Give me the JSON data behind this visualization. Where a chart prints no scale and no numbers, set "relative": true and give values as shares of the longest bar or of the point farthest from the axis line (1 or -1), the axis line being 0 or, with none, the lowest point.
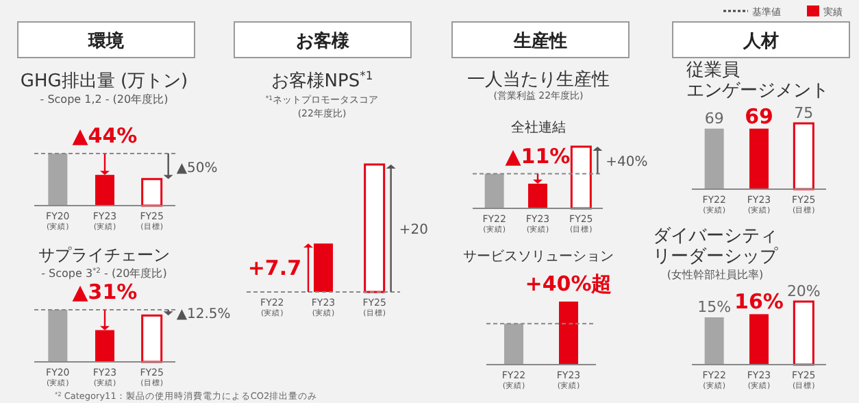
{
  "chart_data": [
    {
      "type": "other",
      "annotations": [
        "環境",
        "お客様",
        "生産性",
        "人材",
        "基準値",
        "実績",
        "一人当たり生産性",
        "(営業利益 22年度比)",
        "$^{*2}$ Category11：製品の使用時消費電力によるCO2排出量のみ"
      ]
    },
    {
      "type": "bar",
      "title": "GHG排出量 (万トン)",
      "subtitle": "- Scope 1,2 - (20年度比)",
      "categories": [
        "FY20(実績)",
        "FY23(実績)",
        "FY25(目標)"
      ],
      "values": [
        1,
        0.59,
        0.51
      ],
      "colors": [
        "#a6a6a6",
        "#e60012",
        "#ffffff"
      ],
      "relative": true,
      "ref_lines": [
        {
          "axis": "y",
          "value": 1,
          "line_style": "dashed"
        }
      ],
      "annotations": [
        "▲44%",
        "▲50%"
      ]
    },
    {
      "type": "bar",
      "title": "サプライチェーン",
      "subtitle": "- Scope 3$^{*2}$ - (20年度比)",
      "categories": [
        "FY20(実績)",
        "FY23(実績)",
        "FY25(目標)"
      ],
      "values": [
        1,
        0.61,
        0.89
      ],
      "colors": [
        "#a6a6a6",
        "#e60012",
        "#ffffff"
      ],
      "relative": true,
      "ref_lines": [
        {
          "axis": "y",
          "value": 1,
          "line_style": "dashed"
        }
      ],
      "annotations": [
        "▲31%",
        "▲12.5%"
      ]
    },
    {
      "type": "bar",
      "title": "お客様NPS$^{*1}$",
      "subtitle": "$^{*1}$ネットプロモータスコア\n(22年度比)",
      "categories": [
        "FY22(実績)",
        "FY23(実績)",
        "FY25(目標)"
      ],
      "values": [
        0,
        0.38,
        1
      ],
      "colors": [
        "#a6a6a6",
        "#e60012",
        "#ffffff"
      ],
      "relative": true,
      "ref_lines": [
        {
          "axis": "y",
          "value": 0,
          "line_style": "dashed"
        }
      ],
      "annotations": [
        "+7.7",
        "+20"
      ]
    },
    {
      "type": "bar",
      "title": "全社連結",
      "categories": [
        "FY22(実績)",
        "FY23(実績)",
        "FY25(目標)"
      ],
      "values": [
        0.56,
        0.4,
        1
      ],
      "colors": [
        "#a6a6a6",
        "#e60012",
        "#ffffff"
      ],
      "relative": true,
      "ref_lines": [
        {
          "axis": "y",
          "value": 0.56,
          "line_style": "dashed"
        }
      ],
      "annotations": [
        "▲11%",
        "+40%"
      ]
    },
    {
      "type": "bar",
      "title": "サービスソリューション",
      "categories": [
        "FY22(実績)",
        "FY23(実績)"
      ],
      "values": [
        0.65,
        1
      ],
      "colors": [
        "#a6a6a6",
        "#e60012"
      ],
      "relative": true,
      "ref_lines": [
        {
          "axis": "y",
          "value": 0.65,
          "line_style": "dashed"
        }
      ],
      "annotations": [
        "+40%超"
      ]
    },
    {
      "type": "bar",
      "title": "従業員エンゲージメント",
      "categories": [
        "FY22(実績)",
        "FY23(実績)",
        "FY25(目標)"
      ],
      "values": [
        69,
        69,
        75
      ],
      "colors": [
        "#a6a6a6",
        "#e60012",
        "#ffffff"
      ],
      "tick_labels": "x",
      "data_labels": true
    },
    {
      "type": "bar",
      "title": "ダイバーシティリーダーシップ",
      "subtitle": "(女性幹部社員比率)",
      "categories": [
        "FY22(実績)",
        "FY23(実績)",
        "FY25(目標)"
      ],
      "values": [
        15,
        16,
        20
      ],
      "colors": [
        "#a6a6a6",
        "#e60012",
        "#ffffff"
      ],
      "tick_labels": "x",
      "value_labels": [
        "15%",
        "16%",
        "20%"
      ]
    }
  ]
}
